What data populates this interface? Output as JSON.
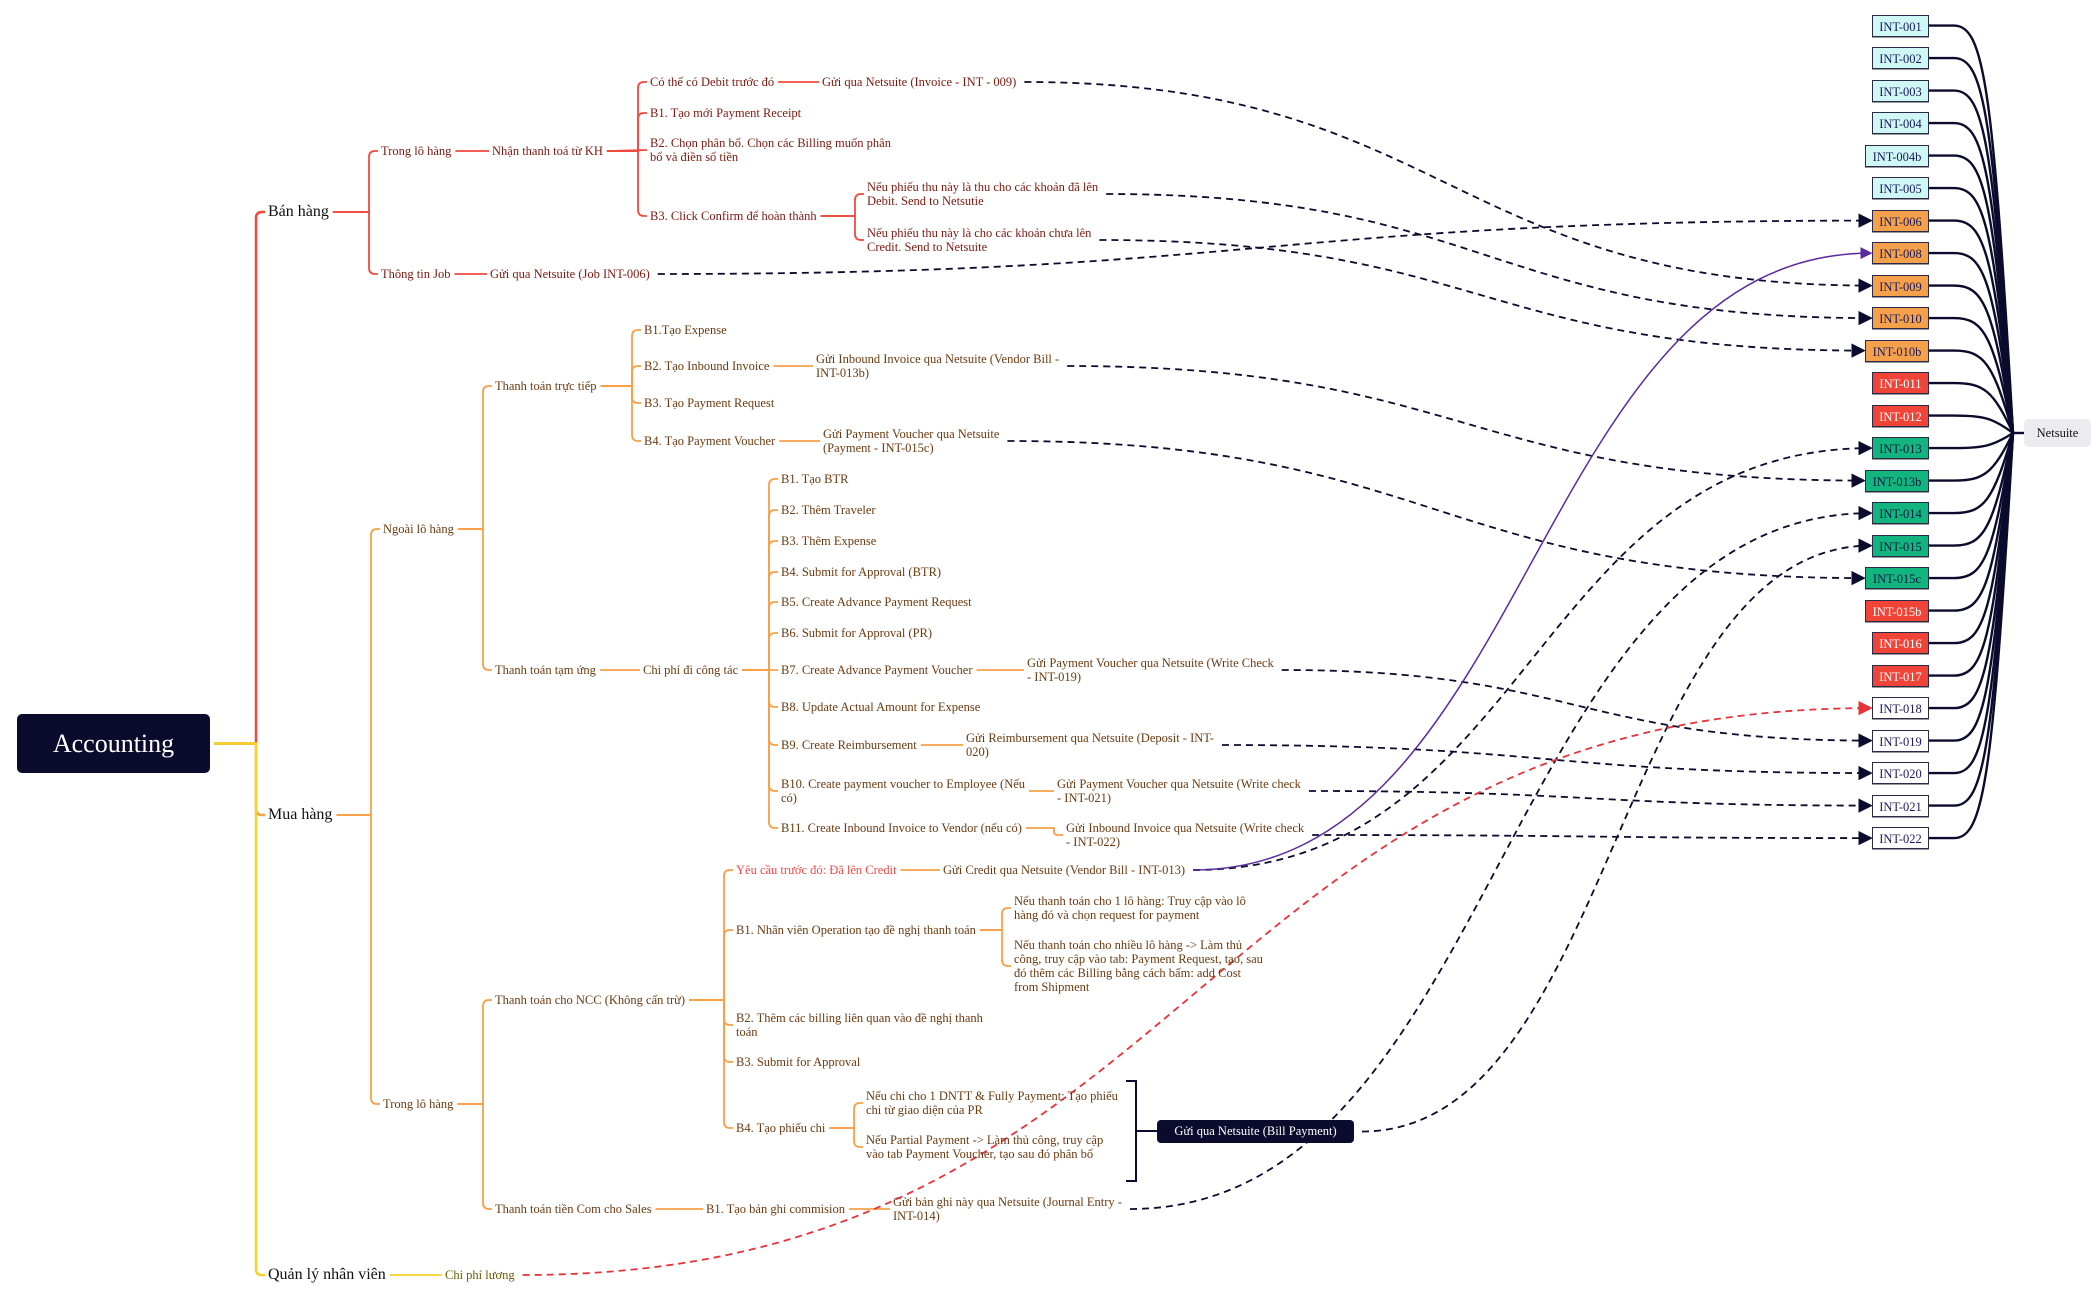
{
  "root": "Accounting",
  "ban_hang": {
    "label": "Bán hàng",
    "trong_lo_hang": "Trong lô hàng",
    "nhan_thanh_toan": "Nhận thanh toá từ KH",
    "debit": "Có thể có Debit trước đó",
    "debit_send": "Gửi qua Netsuite (Invoice - INT - 009)",
    "b1": "B1. Tạo mới Payment Receipt",
    "b2": "B2. Chọn phân bổ. Chọn các Billing muốn phân bổ và điền số tiền",
    "b3": "B3. Click Confirm để hoàn thành",
    "b3_a": "Nếu phiếu thu này là thu cho các khoản đã lên Debit. Send to Netsutie",
    "b3_b": "Nếu phiếu thu này là cho các khoản chưa lên Credit. Send to Netsuite",
    "thong_tin_job": "Thông tin Job",
    "job_send": "Gửi qua Netsuite (Job INT-006)"
  },
  "mua_hang": {
    "label": "Mua hàng",
    "ngoai_lo_hang": "Ngoài lô hàng",
    "truc_tiep": {
      "label": "Thanh toán trực tiếp",
      "b1": "B1.Tạo Expense",
      "b2": "B2. Tạo Inbound Invoice",
      "b2_send": "Gửi Inbound Invoice qua Netsuite (Vendor Bill - INT-013b)",
      "b3": "B3. Tạo Payment Request",
      "b4": "B4. Tạo Payment Voucher",
      "b4_send": "Gửi Payment Voucher qua Netsuite (Payment - INT-015c)"
    },
    "tam_ung": {
      "label": "Thanh toán tạm ứng",
      "chi_phi": "Chi phí đi công tác",
      "steps": [
        "B1. Tạo BTR",
        "B2. Thêm Traveler",
        "B3. Thêm Expense",
        "B4. Submit for Approval (BTR)",
        "B5. Create Advance Payment Request",
        "B6. Submit for Approval (PR)",
        "B7. Create Advance Payment Voucher",
        "B8. Update Actual Amount for Expense",
        "B9. Create Reimbursement",
        "B10. Create payment voucher to Employee (Nếu có)",
        "B11. Create Inbound Invoice to Vendor (nếu có)"
      ],
      "b7_send": "Gửi Payment Voucher qua Netsuite (Write Check - INT-019)",
      "b9_send": "Gửi Reimbursement qua Netsuite (Deposit - INT-020)",
      "b10_send": "Gửi Payment Voucher qua Netsuite (Write check - INT-021)",
      "b11_send": "Gửi Inbound Invoice qua Netsuite (Write check - INT-022)"
    },
    "trong_lo_hang": "Trong lô hàng",
    "ncc": {
      "label": "Thanh toán cho NCC (Không cấn trừ)",
      "yeu_cau": "Yêu cầu trước đó: Đã lên Credit",
      "yeu_cau_send": "Gửi Credit qua Netsuite (Vendor Bill - INT-013)",
      "b1": "B1. Nhân viên Operation tạo đề nghị thanh toán",
      "b1_a": "Nếu thanh toán cho 1 lô hàng: Truy cập vào lô hàng đó và chọn request for payment",
      "b1_b": "Nếu thanh toán cho nhiều lô hàng -> Làm thủ công, truy cập vào tab: Payment Request, tạo, sau đó thêm các Billing bằng cách bấm: add Cost from Shipment",
      "b2": "B2. Thêm các billing liên quan vào đề nghị thanh toán",
      "b3": "B3. Submit for Approval",
      "b4": "B4. Tạo phiếu chi",
      "b4_a": "Nếu chi cho 1 DNTT & Fully Payment: Tạo phiếu chi từ giao diện của PR",
      "b4_b": "Nếu Partial Payment -> Làm thủ công, truy cập vào tab Payment Voucher, tạo sau đó phân bổ",
      "bill_payment": "Gửi qua Netsuite (Bill Payment)"
    },
    "com": {
      "label": "Thanh toán tiền Com cho Sales",
      "b1": "B1. Tạo bản ghi commision",
      "send": "Gửi bản ghi này qua Netsuite (Journal Entry - INT-014)"
    }
  },
  "quan_ly": {
    "label": "Quản lý nhân viên",
    "chi_phi_luong": "Chi phí lương"
  },
  "netsuite": "Netsuite",
  "integrations": [
    {
      "code": "INT-001",
      "color": "cyan"
    },
    {
      "code": "INT-002",
      "color": "cyan"
    },
    {
      "code": "INT-003",
      "color": "cyan"
    },
    {
      "code": "INT-004",
      "color": "cyan"
    },
    {
      "code": "INT-004b",
      "color": "cyan"
    },
    {
      "code": "INT-005",
      "color": "cyan"
    },
    {
      "code": "INT-006",
      "color": "orange"
    },
    {
      "code": "INT-008",
      "color": "orange"
    },
    {
      "code": "INT-009",
      "color": "orange"
    },
    {
      "code": "INT-010",
      "color": "orange"
    },
    {
      "code": "INT-010b",
      "color": "orange"
    },
    {
      "code": "INT-011",
      "color": "red"
    },
    {
      "code": "INT-012",
      "color": "red"
    },
    {
      "code": "INT-013",
      "color": "green"
    },
    {
      "code": "INT-013b",
      "color": "green"
    },
    {
      "code": "INT-014",
      "color": "green"
    },
    {
      "code": "INT-015",
      "color": "green"
    },
    {
      "code": "INT-015c",
      "color": "green"
    },
    {
      "code": "INT-015b",
      "color": "red"
    },
    {
      "code": "INT-016",
      "color": "red"
    },
    {
      "code": "INT-017",
      "color": "red"
    },
    {
      "code": "INT-018",
      "color": "white"
    },
    {
      "code": "INT-019",
      "color": "white"
    },
    {
      "code": "INT-020",
      "color": "white"
    },
    {
      "code": "INT-021",
      "color": "white"
    },
    {
      "code": "INT-022",
      "color": "white"
    }
  ],
  "colors": {
    "ban_hang": "#f04a3e",
    "mua_hang": "#f7a047",
    "quan_ly": "#f5d327",
    "link": "#0b0b2e",
    "credit_link": "#5b2a9e",
    "salary_link": "#e8333a"
  }
}
